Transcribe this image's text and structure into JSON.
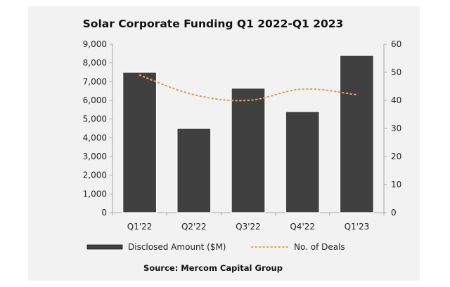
{
  "chart_data": {
    "type": "bar",
    "title": "Solar Corporate Funding Q1 2022-Q1 2023",
    "categories": [
      "Q1'22",
      "Q2'22",
      "Q3'22",
      "Q4'22",
      "Q1'23"
    ],
    "series": [
      {
        "name": "Disclosed Amount ($M)",
        "type": "bar",
        "axis": "left",
        "values": [
          7500,
          4500,
          6650,
          5400,
          8400
        ],
        "color": "#404040"
      },
      {
        "name": "No. of Deals",
        "type": "line",
        "style": "dotted",
        "axis": "right",
        "values": [
          49,
          42,
          40,
          44,
          42
        ],
        "color": "#e0a060"
      }
    ],
    "y_left": {
      "range": [
        0,
        9000
      ],
      "ticks": [
        "0",
        "1,000",
        "2,000",
        "3,000",
        "4,000",
        "5,000",
        "6,000",
        "7,000",
        "8,000",
        "9,000"
      ]
    },
    "y_right": {
      "range": [
        0,
        60
      ],
      "ticks": [
        "0",
        "10",
        "20",
        "30",
        "40",
        "50",
        "60"
      ]
    },
    "xlabel": "",
    "ylabel": "",
    "grid": false,
    "legend_position": "bottom",
    "source": "Source: Mercom Capital Group",
    "background": "#f2f2f2"
  }
}
